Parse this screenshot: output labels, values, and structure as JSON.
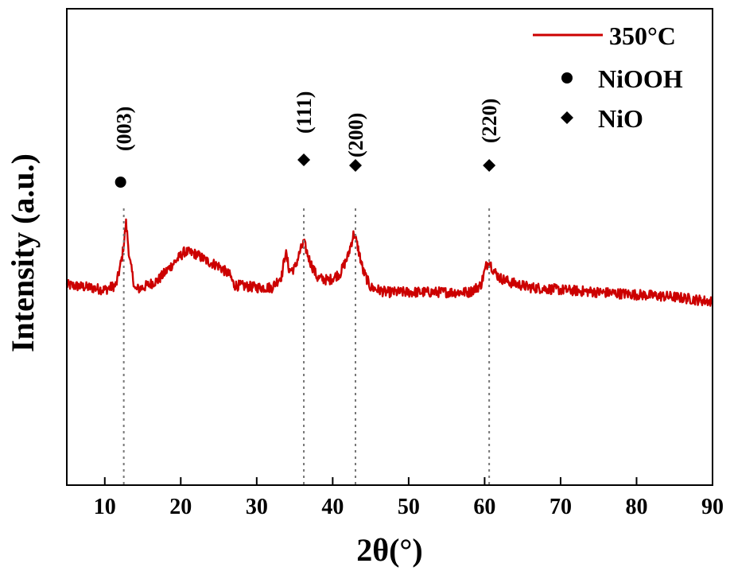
{
  "chart_data": {
    "type": "line",
    "title": "",
    "xlabel": "2θ(°)",
    "ylabel": "Intensity (a.u.)",
    "xlim": [
      5,
      90
    ],
    "xticks": [
      10,
      20,
      30,
      40,
      50,
      60,
      70,
      80,
      90
    ],
    "ylim": [
      0,
      100
    ],
    "y_ticks_labeled": false,
    "grid": false,
    "legend_position": "top-right",
    "series": [
      {
        "name": "350°C",
        "color": "#cc0000",
        "x": [
          5,
          8,
          10,
          11.5,
          12.3,
          12.8,
          13.3,
          14,
          15,
          17,
          19,
          20.5,
          22,
          23.5,
          25,
          26.5,
          27,
          30,
          32,
          33.3,
          33.8,
          34.3,
          35,
          35.7,
          36.2,
          37,
          38,
          39.5,
          41,
          42,
          42.8,
          43.3,
          44,
          45,
          47,
          50,
          55,
          58,
          59.5,
          60.2,
          60.6,
          61.2,
          62,
          63.5,
          66,
          70,
          75,
          80,
          85,
          90
        ],
        "y": [
          42,
          41.5,
          41,
          42,
          48,
          55,
          47,
          41,
          41.5,
          43,
          46.5,
          49,
          48.5,
          47,
          46,
          44,
          42,
          41.5,
          41.5,
          44,
          49,
          45,
          45.5,
          49,
          51,
          47,
          43.5,
          43,
          44.5,
          48,
          53,
          50,
          45,
          41.5,
          40.5,
          40.5,
          40.5,
          40.5,
          42,
          46,
          47,
          45,
          43.5,
          42.5,
          41.5,
          41,
          40.5,
          40,
          39.5,
          38.5
        ]
      }
    ],
    "markers": [
      {
        "symbol": "circle",
        "label": "NiOOH"
      },
      {
        "symbol": "diamond",
        "label": "NiO"
      }
    ],
    "peaks": [
      {
        "x": 12.5,
        "label": "(003)",
        "phase": "NiOOH"
      },
      {
        "x": 36.2,
        "label": "(111)",
        "phase": "NiO"
      },
      {
        "x": 43.0,
        "label": "(200)",
        "phase": "NiO"
      },
      {
        "x": 60.6,
        "label": "(220)",
        "phase": "NiO"
      }
    ]
  }
}
